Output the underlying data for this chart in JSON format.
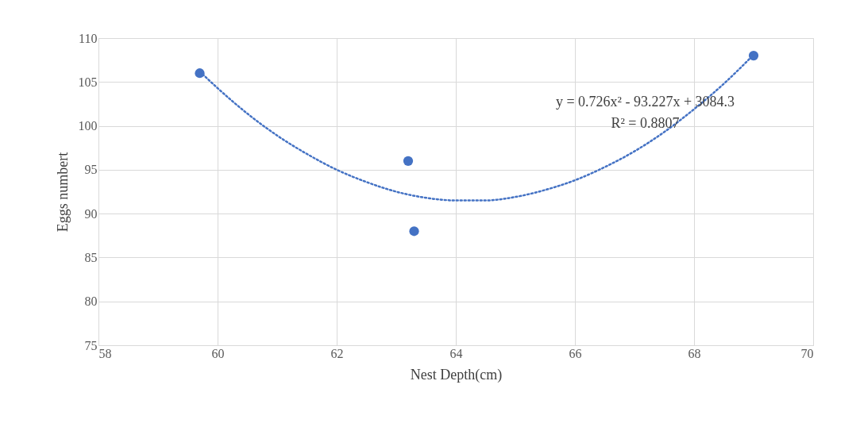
{
  "chart_data": {
    "type": "scatter",
    "xlabel": "Nest Depth(cm)",
    "ylabel": "Eggs numbert",
    "xlim": [
      58,
      70
    ],
    "xticks": [
      58,
      60,
      62,
      64,
      66,
      68,
      70
    ],
    "ylim": [
      75,
      110
    ],
    "yticks": [
      75,
      80,
      85,
      90,
      95,
      100,
      105,
      110
    ],
    "grid": true,
    "series": [
      {
        "marker": "circle",
        "color": "#4472c4",
        "x": [
          59.7,
          63.2,
          63.3,
          69
        ],
        "values": [
          106,
          96,
          88,
          108
        ]
      },
      {
        "type": "line",
        "marker": "none",
        "line_style": "dotted",
        "color": "#4472c4",
        "x": [
          59.7,
          60,
          60.5,
          61,
          61.5,
          62,
          62.5,
          63,
          63.5,
          64,
          64.5,
          65,
          65.5,
          66,
          66.5,
          67,
          67.5,
          68,
          68.5,
          69
        ],
        "values": [
          106.2,
          104.3,
          101.4,
          98.9,
          96.8,
          95.0,
          93.6,
          92.5,
          91.8,
          91.5,
          91.5,
          91.9,
          92.7,
          93.8,
          95.3,
          97.1,
          99.3,
          101.9,
          104.8,
          108.1
        ]
      }
    ],
    "annotations": [
      "y = 0.726x² - 93.227x + 3084.3",
      "R² = 0.8807"
    ]
  }
}
